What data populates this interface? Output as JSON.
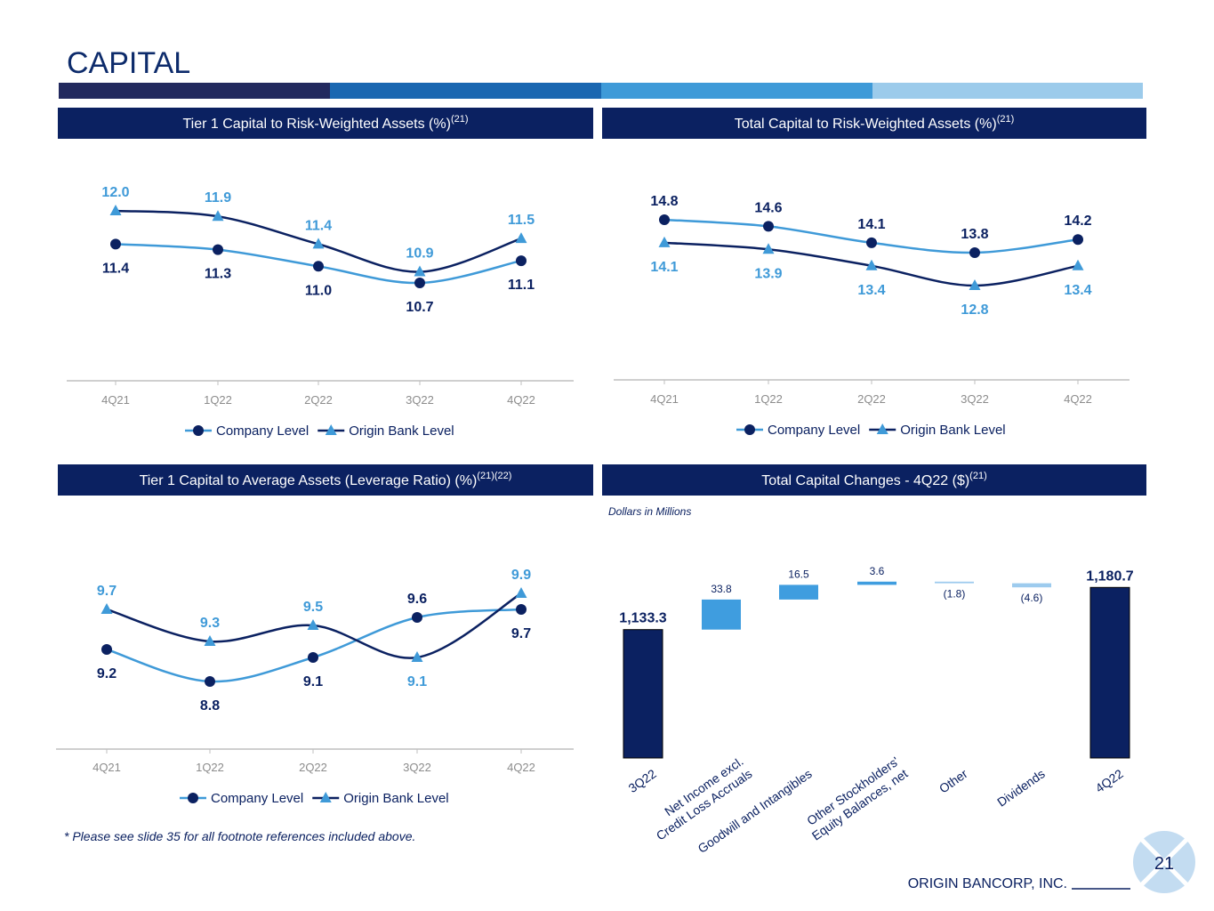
{
  "page": {
    "title": "CAPITAL",
    "footnote": "* Please see slide 35 for all footnote references included above.",
    "company": "ORIGIN BANCORP, INC.",
    "page_number": "21"
  },
  "chart_data": [
    {
      "type": "line",
      "title": "Tier 1 Capital to Risk-Weighted Assets (%)",
      "title_note": "(21)",
      "categories": [
        "4Q21",
        "1Q22",
        "2Q22",
        "3Q22",
        "4Q22"
      ],
      "series": [
        {
          "name": "Company Level",
          "color": "#3f9ad8",
          "marker_color": "#0b2161",
          "marker": "circle",
          "values": [
            11.4,
            11.3,
            11.0,
            10.7,
            11.1
          ],
          "value_labels": [
            "11.4",
            "11.3",
            "11.0",
            "10.7",
            "11.1"
          ]
        },
        {
          "name": "Origin Bank Level",
          "color": "#0b2161",
          "marker_color": "#3f9ad8",
          "marker": "triangle",
          "values": [
            12.0,
            11.9,
            11.4,
            10.9,
            11.5
          ],
          "value_labels": [
            "12.0",
            "11.9",
            "11.4",
            "10.9",
            "11.5"
          ]
        }
      ]
    },
    {
      "type": "line",
      "title": "Total Capital to Risk-Weighted Assets (%)",
      "title_note": "(21)",
      "categories": [
        "4Q21",
        "1Q22",
        "2Q22",
        "3Q22",
        "4Q22"
      ],
      "series": [
        {
          "name": "Company Level",
          "color": "#3f9ad8",
          "marker_color": "#0b2161",
          "marker": "circle",
          "values": [
            14.8,
            14.6,
            14.1,
            13.8,
            14.2
          ],
          "value_labels": [
            "14.8",
            "14.6",
            "14.1",
            "13.8",
            "14.2"
          ]
        },
        {
          "name": "Origin Bank Level",
          "color": "#0b2161",
          "marker_color": "#3f9ad8",
          "marker": "triangle",
          "values": [
            14.1,
            13.9,
            13.4,
            12.8,
            13.4
          ],
          "value_labels": [
            "14.1",
            "13.9",
            "13.4",
            "12.8",
            "13.4"
          ]
        }
      ]
    },
    {
      "type": "line",
      "title": "Tier 1 Capital to Average Assets (Leverage Ratio) (%)",
      "title_note": "(21)(22)",
      "categories": [
        "4Q21",
        "1Q22",
        "2Q22",
        "3Q22",
        "4Q22"
      ],
      "series": [
        {
          "name": "Company Level",
          "color": "#3f9ad8",
          "marker_color": "#0b2161",
          "marker": "circle",
          "values": [
            9.2,
            8.8,
            9.1,
            9.6,
            9.7
          ],
          "value_labels": [
            "9.2",
            "8.8",
            "9.1",
            "9.6",
            "9.7"
          ]
        },
        {
          "name": "Origin Bank Level",
          "color": "#0b2161",
          "marker_color": "#3f9ad8",
          "marker": "triangle",
          "values": [
            9.7,
            9.3,
            9.5,
            9.1,
            9.9
          ],
          "value_labels": [
            "9.7",
            "9.3",
            "9.5",
            "9.1",
            "9.9"
          ]
        }
      ]
    },
    {
      "type": "waterfall",
      "title": "Total Capital Changes - 4Q22 ($)",
      "title_note": "(21)",
      "subtitle": "Dollars in Millions",
      "categories": [
        "3Q22",
        "Net Income excl.\nCredit Loss Accruals",
        "Goodwill and Intangibles",
        "Other Stockholders'\nEquity Balances, net",
        "Other",
        "Dividends",
        "4Q22"
      ],
      "values": [
        1133.3,
        33.8,
        16.5,
        3.6,
        -1.8,
        -4.6,
        1180.7
      ],
      "value_labels": [
        "1,133.3",
        "33.8",
        "16.5",
        "3.6",
        "(1.8)",
        "(4.6)",
        "1,180.7"
      ],
      "colors": [
        "#0b2161",
        "#3f9ddf",
        "#3f9ddf",
        "#3f9ddf",
        "#9dcbee",
        "#9dcbee",
        "#0b2161"
      ],
      "ylim": [
        989,
        1200
      ]
    }
  ]
}
